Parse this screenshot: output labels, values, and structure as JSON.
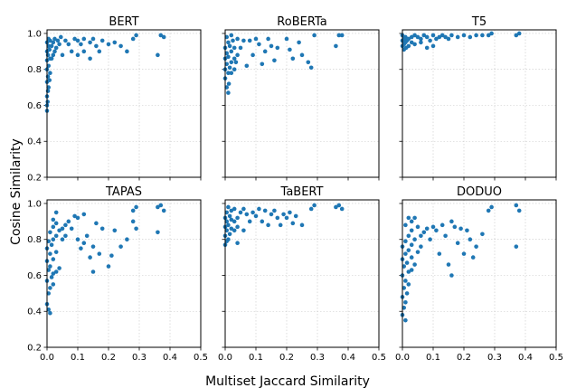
{
  "figure": {
    "xlabel": "Multiset Jaccard Similarity",
    "ylabel": "Cosine Similarity",
    "marker_color": "#1f77b4"
  },
  "chart_data": [
    {
      "type": "scatter",
      "title": "BERT",
      "xlim": [
        0,
        0.5
      ],
      "ylim": [
        0.2,
        1.02
      ],
      "xticks": [
        "0.0",
        "0.1",
        "0.2",
        "0.3",
        "0.4",
        "0.5"
      ],
      "yticks": [
        "0.2",
        "0.4",
        "0.6",
        "0.8",
        "1.0"
      ],
      "grid": true,
      "points": [
        [
          0.0,
          0.57
        ],
        [
          0.0,
          0.6
        ],
        [
          0.002,
          0.62
        ],
        [
          0.0,
          0.65
        ],
        [
          0.003,
          0.68
        ],
        [
          0.005,
          0.7
        ],
        [
          0.0,
          0.73
        ],
        [
          0.008,
          0.74
        ],
        [
          0.003,
          0.76
        ],
        [
          0.01,
          0.78
        ],
        [
          0.0,
          0.8
        ],
        [
          0.005,
          0.82
        ],
        [
          0.0,
          0.85
        ],
        [
          0.01,
          0.86
        ],
        [
          0.015,
          0.86
        ],
        [
          0.003,
          0.88
        ],
        [
          0.02,
          0.88
        ],
        [
          0.0,
          0.9
        ],
        [
          0.008,
          0.91
        ],
        [
          0.025,
          0.9
        ],
        [
          0.005,
          0.93
        ],
        [
          0.015,
          0.93
        ],
        [
          0.03,
          0.92
        ],
        [
          0.0,
          0.95
        ],
        [
          0.01,
          0.96
        ],
        [
          0.02,
          0.95
        ],
        [
          0.035,
          0.96
        ],
        [
          0.04,
          0.94
        ],
        [
          0.005,
          0.97
        ],
        [
          0.025,
          0.97
        ],
        [
          0.045,
          0.98
        ],
        [
          0.06,
          0.96
        ],
        [
          0.07,
          0.94
        ],
        [
          0.05,
          0.88
        ],
        [
          0.09,
          0.97
        ],
        [
          0.1,
          0.96
        ],
        [
          0.11,
          0.94
        ],
        [
          0.12,
          0.97
        ],
        [
          0.12,
          0.9
        ],
        [
          0.14,
          0.95
        ],
        [
          0.15,
          0.97
        ],
        [
          0.16,
          0.93
        ],
        [
          0.17,
          0.9
        ],
        [
          0.18,
          0.96
        ],
        [
          0.2,
          0.94
        ],
        [
          0.22,
          0.95
        ],
        [
          0.24,
          0.93
        ],
        [
          0.26,
          0.9
        ],
        [
          0.28,
          0.97
        ],
        [
          0.29,
          0.99
        ],
        [
          0.37,
          0.99
        ],
        [
          0.38,
          0.98
        ],
        [
          0.36,
          0.88
        ],
        [
          0.14,
          0.86
        ],
        [
          0.1,
          0.88
        ],
        [
          0.08,
          0.9
        ]
      ]
    },
    {
      "type": "scatter",
      "title": "RoBERTa",
      "xlim": [
        0,
        0.5
      ],
      "ylim": [
        0.2,
        1.02
      ],
      "xticks": [
        "0.0",
        "0.1",
        "0.2",
        "0.3",
        "0.4",
        "0.5"
      ],
      "yticks": [
        "0.2",
        "0.4",
        "0.6",
        "0.8",
        "1.0"
      ],
      "grid": true,
      "points": [
        [
          0.01,
          0.67
        ],
        [
          0.005,
          0.7
        ],
        [
          0.012,
          0.72
        ],
        [
          0.0,
          0.75
        ],
        [
          0.01,
          0.78
        ],
        [
          0.02,
          0.78
        ],
        [
          0.0,
          0.8
        ],
        [
          0.015,
          0.81
        ],
        [
          0.03,
          0.8
        ],
        [
          0.005,
          0.83
        ],
        [
          0.02,
          0.84
        ],
        [
          0.0,
          0.86
        ],
        [
          0.01,
          0.87
        ],
        [
          0.03,
          0.86
        ],
        [
          0.005,
          0.89
        ],
        [
          0.02,
          0.9
        ],
        [
          0.04,
          0.88
        ],
        [
          0.0,
          0.92
        ],
        [
          0.015,
          0.93
        ],
        [
          0.03,
          0.92
        ],
        [
          0.01,
          0.95
        ],
        [
          0.025,
          0.96
        ],
        [
          0.005,
          0.98
        ],
        [
          0.02,
          0.99
        ],
        [
          0.04,
          0.97
        ],
        [
          0.06,
          0.96
        ],
        [
          0.07,
          0.82
        ],
        [
          0.09,
          0.88
        ],
        [
          0.1,
          0.97
        ],
        [
          0.11,
          0.94
        ],
        [
          0.12,
          0.83
        ],
        [
          0.13,
          0.9
        ],
        [
          0.14,
          0.97
        ],
        [
          0.15,
          0.93
        ],
        [
          0.16,
          0.85
        ],
        [
          0.17,
          0.92
        ],
        [
          0.2,
          0.97
        ],
        [
          0.21,
          0.91
        ],
        [
          0.22,
          0.86
        ],
        [
          0.24,
          0.95
        ],
        [
          0.25,
          0.88
        ],
        [
          0.27,
          0.84
        ],
        [
          0.28,
          0.81
        ],
        [
          0.29,
          0.99
        ],
        [
          0.36,
          0.93
        ],
        [
          0.37,
          0.99
        ],
        [
          0.38,
          0.99
        ],
        [
          0.08,
          0.96
        ],
        [
          0.05,
          0.92
        ],
        [
          0.035,
          0.84
        ]
      ]
    },
    {
      "type": "scatter",
      "title": "T5",
      "xlim": [
        0,
        0.5
      ],
      "ylim": [
        0.2,
        1.02
      ],
      "xticks": [
        "0.0",
        "0.1",
        "0.2",
        "0.3",
        "0.4",
        "0.5"
      ],
      "yticks": [
        "0.2",
        "0.4",
        "0.6",
        "0.8",
        "1.0"
      ],
      "grid": true,
      "points": [
        [
          0.0,
          0.93
        ],
        [
          0.005,
          0.94
        ],
        [
          0.01,
          0.95
        ],
        [
          0.0,
          0.96
        ],
        [
          0.015,
          0.96
        ],
        [
          0.005,
          0.97
        ],
        [
          0.02,
          0.97
        ],
        [
          0.01,
          0.98
        ],
        [
          0.03,
          0.98
        ],
        [
          0.0,
          0.99
        ],
        [
          0.04,
          0.99
        ],
        [
          0.05,
          0.98
        ],
        [
          0.06,
          0.97
        ],
        [
          0.07,
          0.99
        ],
        [
          0.02,
          0.93
        ],
        [
          0.03,
          0.95
        ],
        [
          0.04,
          0.94
        ],
        [
          0.06,
          0.95
        ],
        [
          0.08,
          0.98
        ],
        [
          0.09,
          0.96
        ],
        [
          0.1,
          0.99
        ],
        [
          0.11,
          0.97
        ],
        [
          0.12,
          0.98
        ],
        [
          0.13,
          0.99
        ],
        [
          0.14,
          0.98
        ],
        [
          0.15,
          0.97
        ],
        [
          0.16,
          0.99
        ],
        [
          0.18,
          0.98
        ],
        [
          0.2,
          0.99
        ],
        [
          0.22,
          0.98
        ],
        [
          0.24,
          0.99
        ],
        [
          0.26,
          0.99
        ],
        [
          0.28,
          0.99
        ],
        [
          0.29,
          1.0
        ],
        [
          0.37,
          0.99
        ],
        [
          0.38,
          1.0
        ],
        [
          0.1,
          0.93
        ],
        [
          0.005,
          0.91
        ],
        [
          0.012,
          0.92
        ],
        [
          0.08,
          0.92
        ]
      ]
    },
    {
      "type": "scatter",
      "title": "TAPAS",
      "xlim": [
        0,
        0.5
      ],
      "ylim": [
        0.2,
        1.02
      ],
      "xticks": [
        "0.0",
        "0.1",
        "0.2",
        "0.3",
        "0.4",
        "0.5"
      ],
      "yticks": [
        "0.2",
        "0.4",
        "0.6",
        "0.8",
        "1.0"
      ],
      "grid": true,
      "points": [
        [
          0.01,
          0.39
        ],
        [
          0.005,
          0.41
        ],
        [
          0.0,
          0.44
        ],
        [
          0.005,
          0.5
        ],
        [
          0.01,
          0.53
        ],
        [
          0.02,
          0.55
        ],
        [
          0.0,
          0.57
        ],
        [
          0.015,
          0.59
        ],
        [
          0.02,
          0.61
        ],
        [
          0.03,
          0.62
        ],
        [
          0.005,
          0.63
        ],
        [
          0.01,
          0.65
        ],
        [
          0.04,
          0.64
        ],
        [
          0.0,
          0.68
        ],
        [
          0.02,
          0.69
        ],
        [
          0.01,
          0.72
        ],
        [
          0.03,
          0.73
        ],
        [
          0.0,
          0.75
        ],
        [
          0.015,
          0.77
        ],
        [
          0.005,
          0.79
        ],
        [
          0.02,
          0.8
        ],
        [
          0.03,
          0.82
        ],
        [
          0.01,
          0.84
        ],
        [
          0.04,
          0.85
        ],
        [
          0.02,
          0.87
        ],
        [
          0.05,
          0.86
        ],
        [
          0.03,
          0.89
        ],
        [
          0.06,
          0.88
        ],
        [
          0.02,
          0.91
        ],
        [
          0.03,
          0.95
        ],
        [
          0.07,
          0.9
        ],
        [
          0.08,
          0.86
        ],
        [
          0.09,
          0.93
        ],
        [
          0.1,
          0.92
        ],
        [
          0.1,
          0.8
        ],
        [
          0.11,
          0.75
        ],
        [
          0.12,
          0.94
        ],
        [
          0.12,
          0.78
        ],
        [
          0.13,
          0.82
        ],
        [
          0.14,
          0.7
        ],
        [
          0.15,
          0.76
        ],
        [
          0.15,
          0.62
        ],
        [
          0.16,
          0.89
        ],
        [
          0.17,
          0.72
        ],
        [
          0.18,
          0.86
        ],
        [
          0.2,
          0.65
        ],
        [
          0.21,
          0.71
        ],
        [
          0.22,
          0.85
        ],
        [
          0.24,
          0.76
        ],
        [
          0.26,
          0.8
        ],
        [
          0.28,
          0.96
        ],
        [
          0.29,
          0.98
        ],
        [
          0.29,
          0.86
        ],
        [
          0.28,
          0.9
        ],
        [
          0.36,
          0.84
        ],
        [
          0.37,
          0.99
        ],
        [
          0.38,
          0.96
        ],
        [
          0.36,
          0.98
        ],
        [
          0.05,
          0.8
        ],
        [
          0.06,
          0.82
        ]
      ]
    },
    {
      "type": "scatter",
      "title": "TaBERT",
      "xlim": [
        0,
        0.5
      ],
      "ylim": [
        0.2,
        1.02
      ],
      "xticks": [
        "0.0",
        "0.1",
        "0.2",
        "0.3",
        "0.4",
        "0.5"
      ],
      "yticks": [
        "0.2",
        "0.4",
        "0.6",
        "0.8",
        "1.0"
      ],
      "grid": true,
      "points": [
        [
          0.0,
          0.77
        ],
        [
          0.005,
          0.79
        ],
        [
          0.01,
          0.8
        ],
        [
          0.0,
          0.82
        ],
        [
          0.015,
          0.83
        ],
        [
          0.005,
          0.85
        ],
        [
          0.02,
          0.86
        ],
        [
          0.03,
          0.85
        ],
        [
          0.0,
          0.87
        ],
        [
          0.01,
          0.88
        ],
        [
          0.04,
          0.87
        ],
        [
          0.005,
          0.9
        ],
        [
          0.02,
          0.91
        ],
        [
          0.03,
          0.9
        ],
        [
          0.0,
          0.92
        ],
        [
          0.015,
          0.93
        ],
        [
          0.04,
          0.92
        ],
        [
          0.005,
          0.95
        ],
        [
          0.02,
          0.96
        ],
        [
          0.05,
          0.95
        ],
        [
          0.01,
          0.98
        ],
        [
          0.03,
          0.97
        ],
        [
          0.06,
          0.97
        ],
        [
          0.07,
          0.94
        ],
        [
          0.08,
          0.9
        ],
        [
          0.09,
          0.95
        ],
        [
          0.1,
          0.93
        ],
        [
          0.11,
          0.97
        ],
        [
          0.12,
          0.9
        ],
        [
          0.13,
          0.96
        ],
        [
          0.14,
          0.88
        ],
        [
          0.15,
          0.94
        ],
        [
          0.16,
          0.96
        ],
        [
          0.17,
          0.92
        ],
        [
          0.18,
          0.88
        ],
        [
          0.19,
          0.94
        ],
        [
          0.2,
          0.92
        ],
        [
          0.21,
          0.95
        ],
        [
          0.22,
          0.89
        ],
        [
          0.23,
          0.93
        ],
        [
          0.25,
          0.88
        ],
        [
          0.28,
          0.97
        ],
        [
          0.29,
          0.99
        ],
        [
          0.36,
          0.98
        ],
        [
          0.37,
          0.99
        ],
        [
          0.38,
          0.97
        ],
        [
          0.06,
          0.85
        ],
        [
          0.04,
          0.78
        ]
      ]
    },
    {
      "type": "scatter",
      "title": "DODUO",
      "xlim": [
        0,
        0.5
      ],
      "ylim": [
        0.2,
        1.02
      ],
      "xticks": [
        "0.0",
        "0.1",
        "0.2",
        "0.3",
        "0.4",
        "0.5"
      ],
      "yticks": [
        "0.2",
        "0.4",
        "0.6",
        "0.8",
        "1.0"
      ],
      "grid": true,
      "points": [
        [
          0.01,
          0.35
        ],
        [
          0.0,
          0.38
        ],
        [
          0.005,
          0.42
        ],
        [
          0.01,
          0.45
        ],
        [
          0.0,
          0.48
        ],
        [
          0.015,
          0.5
        ],
        [
          0.005,
          0.53
        ],
        [
          0.02,
          0.55
        ],
        [
          0.01,
          0.57
        ],
        [
          0.0,
          0.6
        ],
        [
          0.02,
          0.62
        ],
        [
          0.03,
          0.63
        ],
        [
          0.005,
          0.65
        ],
        [
          0.015,
          0.67
        ],
        [
          0.04,
          0.66
        ],
        [
          0.0,
          0.69
        ],
        [
          0.03,
          0.7
        ],
        [
          0.01,
          0.72
        ],
        [
          0.02,
          0.74
        ],
        [
          0.05,
          0.73
        ],
        [
          0.0,
          0.76
        ],
        [
          0.03,
          0.77
        ],
        [
          0.01,
          0.79
        ],
        [
          0.04,
          0.8
        ],
        [
          0.02,
          0.82
        ],
        [
          0.06,
          0.82
        ],
        [
          0.03,
          0.85
        ],
        [
          0.07,
          0.84
        ],
        [
          0.01,
          0.88
        ],
        [
          0.03,
          0.9
        ],
        [
          0.02,
          0.92
        ],
        [
          0.08,
          0.86
        ],
        [
          0.09,
          0.8
        ],
        [
          0.1,
          0.87
        ],
        [
          0.11,
          0.85
        ],
        [
          0.12,
          0.72
        ],
        [
          0.13,
          0.88
        ],
        [
          0.14,
          0.82
        ],
        [
          0.15,
          0.66
        ],
        [
          0.16,
          0.6
        ],
        [
          0.16,
          0.9
        ],
        [
          0.17,
          0.87
        ],
        [
          0.18,
          0.78
        ],
        [
          0.19,
          0.86
        ],
        [
          0.2,
          0.72
        ],
        [
          0.21,
          0.85
        ],
        [
          0.22,
          0.8
        ],
        [
          0.23,
          0.7
        ],
        [
          0.24,
          0.76
        ],
        [
          0.26,
          0.83
        ],
        [
          0.28,
          0.96
        ],
        [
          0.29,
          0.98
        ],
        [
          0.37,
          0.76
        ],
        [
          0.37,
          0.99
        ],
        [
          0.38,
          0.96
        ],
        [
          0.05,
          0.87
        ],
        [
          0.06,
          0.76
        ],
        [
          0.04,
          0.92
        ]
      ]
    }
  ]
}
